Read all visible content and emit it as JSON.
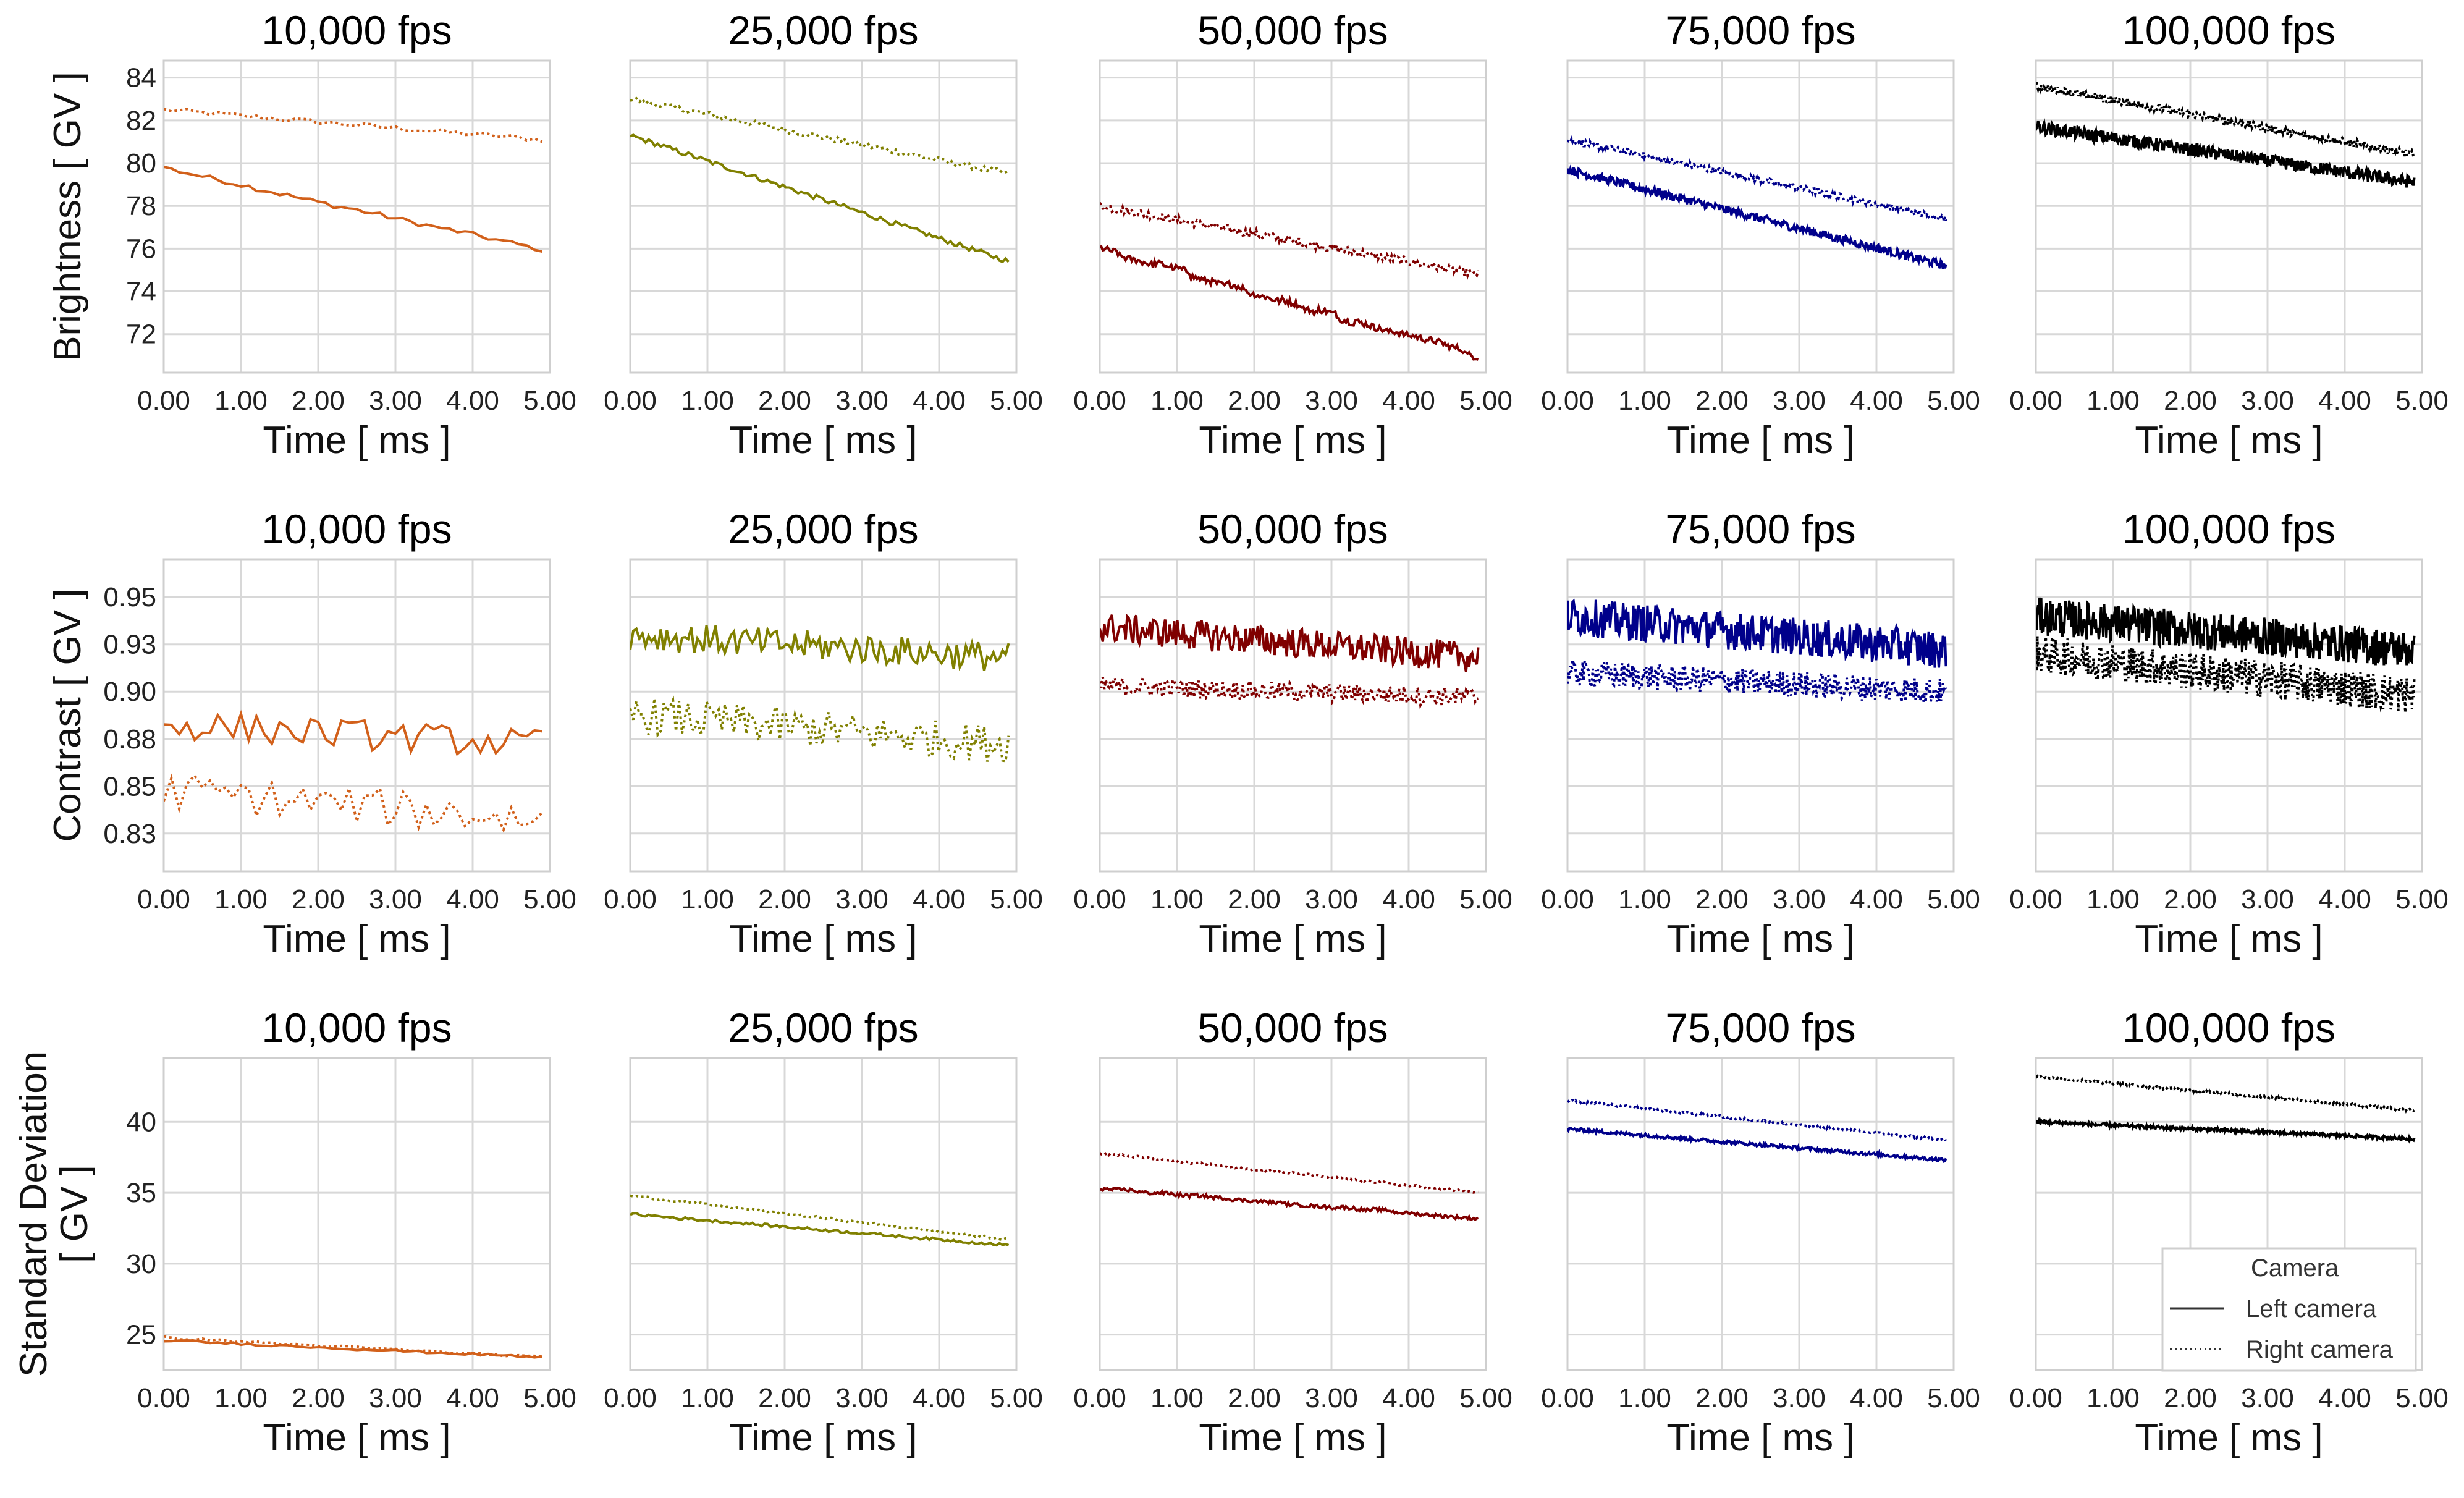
{
  "chart_data": {
    "type": "line",
    "layout": "3x5 grid",
    "x_ticks": [
      "0.00",
      "1.00",
      "2.00",
      "3.00",
      "4.00",
      "5.00"
    ],
    "xlim": [
      0,
      5
    ],
    "xlabel": "Time [ ms ]",
    "column_titles": [
      "10,000 fps",
      "25,000 fps",
      "50,000 fps",
      "75,000 fps",
      "100,000 fps"
    ],
    "column_colors": [
      "#d2601a",
      "#808000",
      "#800000",
      "#00008b",
      "#000000"
    ],
    "column_sample_counts": [
      50,
      125,
      250,
      375,
      500
    ],
    "legend": {
      "title": "Camera",
      "entries": [
        {
          "label": "Left camera",
          "style": "solid"
        },
        {
          "label": "Right camera",
          "style": "dotted"
        }
      ],
      "location": "lower right of last panel"
    },
    "rows": [
      {
        "metric": "brightness",
        "ylabel": "Brightness [ GV ]",
        "ylim": [
          70.2,
          84.8
        ],
        "y_ticks": [
          72,
          74,
          76,
          78,
          80,
          82,
          84
        ],
        "y_tick_labels": [
          "72",
          "74",
          "76",
          "78",
          "80",
          "82",
          "84"
        ],
        "panels": [
          {
            "left": {
              "start": 79.8,
              "end": 75.9,
              "noise": 0.12,
              "steps": 0.15
            },
            "right": {
              "start": 82.5,
              "end": 81.1,
              "noise": 0.12,
              "steps": 0.0
            }
          },
          {
            "left": {
              "start": 81.3,
              "end": 75.4,
              "noise": 0.12,
              "steps": 0.0
            },
            "right": {
              "start": 83.0,
              "end": 79.5,
              "noise": 0.15,
              "steps": 0.0
            }
          },
          {
            "left": {
              "start": 76.0,
              "end": 71.0,
              "noise": 0.15,
              "steps": 0.25
            },
            "right": {
              "start": 78.0,
              "end": 74.8,
              "noise": 0.2,
              "steps": 0.0
            }
          },
          {
            "left": {
              "start": 79.7,
              "end": 75.2,
              "noise": 0.2,
              "steps": 0.0
            },
            "right": {
              "start": 81.1,
              "end": 77.4,
              "noise": 0.15,
              "steps": 0.0
            }
          },
          {
            "left": {
              "start": 81.7,
              "end": 79.1,
              "noise": 0.3,
              "steps": 0.0
            },
            "right": {
              "start": 83.6,
              "end": 80.4,
              "noise": 0.18,
              "steps": 0.0
            }
          }
        ]
      },
      {
        "metric": "contrast",
        "ylabel": "Contrast [ GV ]",
        "ylim": [
          0.805,
          0.97
        ],
        "y_ticks": [
          0.825,
          0.85,
          0.875,
          0.9,
          0.925,
          0.95
        ],
        "y_tick_labels": [
          "0.83",
          "0.85",
          "0.88",
          "0.90",
          "0.93",
          "0.95"
        ],
        "panels": [
          {
            "left": {
              "start": 0.883,
              "end": 0.872,
              "noise": 0.008,
              "steps": 0.0
            },
            "right": {
              "start": 0.848,
              "end": 0.832,
              "noise": 0.01,
              "steps": 0.0
            }
          },
          {
            "left": {
              "start": 0.93,
              "end": 0.918,
              "noise": 0.008,
              "steps": 0.0
            },
            "right": {
              "start": 0.888,
              "end": 0.872,
              "noise": 0.01,
              "steps": 0.0
            }
          },
          {
            "left": {
              "start": 0.934,
              "end": 0.918,
              "noise": 0.008,
              "steps": 0.0
            },
            "right": {
              "start": 0.903,
              "end": 0.897,
              "noise": 0.005,
              "steps": 0.0
            }
          },
          {
            "left": {
              "start": 0.94,
              "end": 0.922,
              "noise": 0.01,
              "steps": 0.0
            },
            "right": {
              "start": 0.91,
              "end": 0.9,
              "noise": 0.007,
              "steps": 0.0
            }
          },
          {
            "left": {
              "start": 0.94,
              "end": 0.922,
              "noise": 0.01,
              "steps": 0.0
            },
            "right": {
              "start": 0.92,
              "end": 0.898,
              "noise": 0.01,
              "steps": 0.0
            }
          }
        ]
      },
      {
        "metric": "standard_deviation",
        "ylabel": [
          "Standard Deviation",
          "[ GV ]"
        ],
        "ylim": [
          22.5,
          44.5
        ],
        "y_ticks": [
          25,
          30,
          35,
          40
        ],
        "y_tick_labels": [
          "25",
          "30",
          "35",
          "40"
        ],
        "panels": [
          {
            "left": {
              "start": 24.6,
              "end": 23.4,
              "noise": 0.08,
              "steps": 0.0
            },
            "right": {
              "start": 24.8,
              "end": 23.4,
              "noise": 0.08,
              "steps": 0.0
            }
          },
          {
            "left": {
              "start": 33.5,
              "end": 31.3,
              "noise": 0.1,
              "steps": 0.0
            },
            "right": {
              "start": 34.8,
              "end": 31.7,
              "noise": 0.08,
              "steps": 0.0
            }
          },
          {
            "left": {
              "start": 35.3,
              "end": 33.2,
              "noise": 0.12,
              "steps": 0.12
            },
            "right": {
              "start": 37.8,
              "end": 35.0,
              "noise": 0.08,
              "steps": 0.0
            }
          },
          {
            "left": {
              "start": 39.5,
              "end": 37.3,
              "noise": 0.12,
              "steps": 0.0
            },
            "right": {
              "start": 41.5,
              "end": 38.7,
              "noise": 0.08,
              "steps": 0.0
            }
          },
          {
            "left": {
              "start": 40.0,
              "end": 38.8,
              "noise": 0.12,
              "steps": 0.0
            },
            "right": {
              "start": 43.2,
              "end": 40.8,
              "noise": 0.08,
              "steps": 0.0
            }
          }
        ]
      }
    ]
  }
}
